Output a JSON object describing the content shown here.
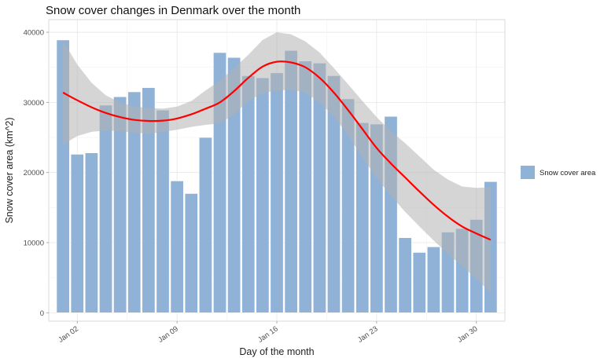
{
  "chart_data": {
    "type": "bar",
    "title": "Snow cover changes in Denmark over the month",
    "xlabel": "Day of the month",
    "ylabel": "Snow cover area (km^2)",
    "days": [
      1,
      2,
      3,
      4,
      5,
      6,
      7,
      8,
      9,
      10,
      11,
      12,
      13,
      14,
      15,
      16,
      17,
      18,
      19,
      20,
      21,
      22,
      23,
      24,
      25,
      26,
      27,
      28,
      29,
      30,
      31
    ],
    "values": [
      38900,
      22600,
      22800,
      29600,
      30800,
      31500,
      32100,
      28900,
      18800,
      17000,
      25000,
      37100,
      36400,
      33800,
      33500,
      34200,
      37400,
      35900,
      35600,
      33800,
      30500,
      27100,
      26900,
      28000,
      10700,
      8600,
      9400,
      11500,
      12000,
      13300,
      18700
    ],
    "smooth": {
      "name": "smoothed trend",
      "x": [
        1,
        2,
        3,
        4,
        5,
        6,
        7,
        8,
        9,
        10,
        11,
        12,
        13,
        14,
        15,
        16,
        17,
        18,
        19,
        20,
        21,
        22,
        23,
        24,
        25,
        26,
        27,
        28,
        29,
        30,
        31
      ],
      "fit": [
        31400,
        30300,
        29300,
        28500,
        27900,
        27500,
        27350,
        27400,
        27700,
        28300,
        29100,
        30000,
        31600,
        33500,
        35100,
        35800,
        35700,
        35000,
        33500,
        31400,
        28900,
        26200,
        23500,
        21300,
        19300,
        17300,
        15400,
        13700,
        12300,
        11300,
        10400
      ],
      "lower": [
        24000,
        25200,
        25800,
        26000,
        25900,
        25700,
        25500,
        25800,
        26100,
        26500,
        26800,
        27000,
        28300,
        30200,
        31300,
        31700,
        31800,
        31400,
        30000,
        28000,
        25300,
        22200,
        19200,
        16700,
        14400,
        12300,
        10300,
        8400,
        6700,
        4800,
        2900
      ],
      "upper": [
        38800,
        35400,
        32800,
        31000,
        30000,
        29400,
        29200,
        29100,
        29400,
        30200,
        31700,
        33100,
        34900,
        36800,
        38900,
        40000,
        39700,
        38700,
        37100,
        34900,
        32600,
        30200,
        27900,
        25900,
        24200,
        22300,
        20400,
        19000,
        18000,
        17800,
        17900
      ]
    },
    "x_ticks": [
      {
        "day": 2,
        "label": "Jan 02"
      },
      {
        "day": 9,
        "label": "Jan 09"
      },
      {
        "day": 16,
        "label": "Jan 16"
      },
      {
        "day": 23,
        "label": "Jan 23"
      },
      {
        "day": 30,
        "label": "Jan 30"
      }
    ],
    "y_ticks": [
      0,
      10000,
      20000,
      30000,
      40000
    ],
    "ylim": [
      -1200,
      41800
    ],
    "xlim": [
      0.0,
      32.0
    ],
    "legend": {
      "label": "Snow cover area",
      "position": "right"
    },
    "colors": {
      "bar": "#8fb2d6",
      "bar_stroke": "#ffffff",
      "line": "#ff0000",
      "ribbon": "#b3b3b3",
      "panel_border": "#d0d0d0"
    }
  }
}
